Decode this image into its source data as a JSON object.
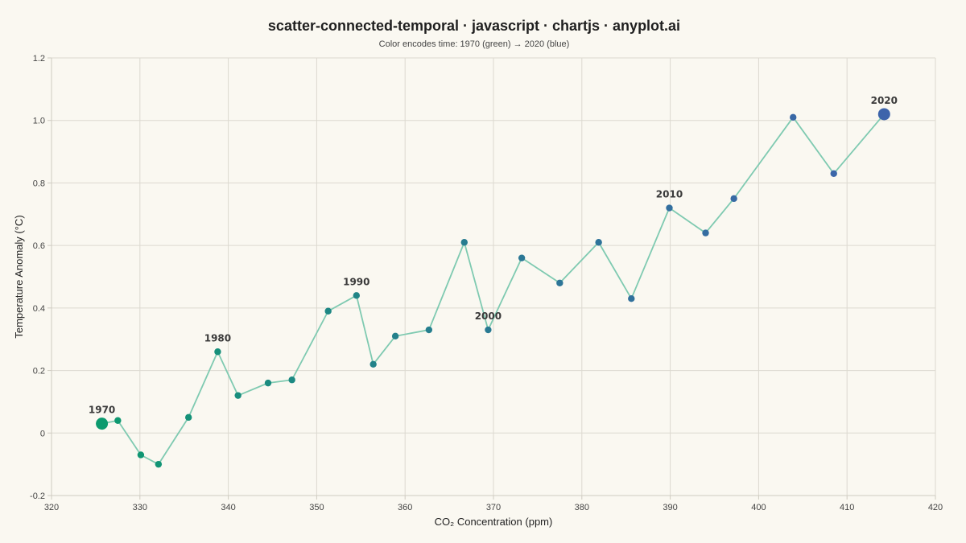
{
  "chart_data": {
    "type": "scatter",
    "title": "scatter-connected-temporal · javascript · chartjs · anyplot.ai",
    "subtitle": "Color encodes time: 1970 (green) → 2020 (blue)",
    "xlabel": "CO₂ Concentration (ppm)",
    "ylabel": "Temperature Anomaly (°C)",
    "xlim": [
      320,
      420
    ],
    "ylim": [
      -0.2,
      1.2
    ],
    "x_ticks": [
      "320",
      "330",
      "340",
      "350",
      "360",
      "370",
      "380",
      "390",
      "400",
      "410",
      "420"
    ],
    "y_ticks": [
      "-0.2",
      "0",
      "0.2",
      "0.4",
      "0.6",
      "0.8",
      "1.0",
      "1.2"
    ],
    "grid": true,
    "line_color": "#7fcab1",
    "color_start": "#0c9a6e",
    "color_end": "#3d64ab",
    "year_labels": [
      "1970",
      "1980",
      "1990",
      "2000",
      "2010",
      "2020"
    ],
    "points": [
      {
        "x": 325.7,
        "y": 0.03
      },
      {
        "x": 327.5,
        "y": 0.04
      },
      {
        "x": 330.1,
        "y": -0.07
      },
      {
        "x": 332.1,
        "y": -0.1
      },
      {
        "x": 335.5,
        "y": 0.05
      },
      {
        "x": 338.8,
        "y": 0.26
      },
      {
        "x": 341.1,
        "y": 0.12
      },
      {
        "x": 344.5,
        "y": 0.16
      },
      {
        "x": 347.2,
        "y": 0.17
      },
      {
        "x": 351.3,
        "y": 0.39
      },
      {
        "x": 354.5,
        "y": 0.44
      },
      {
        "x": 356.4,
        "y": 0.22
      },
      {
        "x": 358.9,
        "y": 0.31
      },
      {
        "x": 362.7,
        "y": 0.33
      },
      {
        "x": 366.7,
        "y": 0.61
      },
      {
        "x": 369.4,
        "y": 0.33
      },
      {
        "x": 373.2,
        "y": 0.56
      },
      {
        "x": 377.5,
        "y": 0.48
      },
      {
        "x": 381.9,
        "y": 0.61
      },
      {
        "x": 385.6,
        "y": 0.43
      },
      {
        "x": 389.9,
        "y": 0.72
      },
      {
        "x": 394.0,
        "y": 0.64
      },
      {
        "x": 397.2,
        "y": 0.75
      },
      {
        "x": 403.9,
        "y": 1.01
      },
      {
        "x": 408.5,
        "y": 0.83
      },
      {
        "x": 414.2,
        "y": 1.02
      }
    ]
  }
}
